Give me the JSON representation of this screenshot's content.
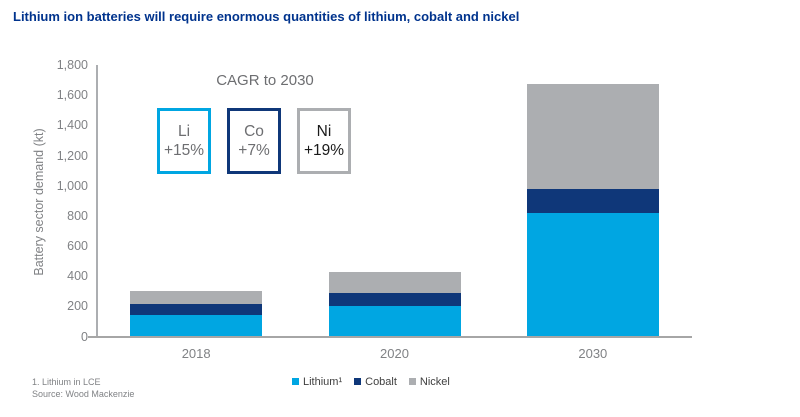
{
  "chart_data": {
    "type": "bar",
    "stacked": true,
    "title": "Lithium ion batteries will require enormous quantities of lithium, cobalt and nickel",
    "categories": [
      "2018",
      "2020",
      "2030"
    ],
    "series": [
      {
        "name": "Lithium¹",
        "color": "#00A6E2",
        "values": [
          140,
          205,
          820
        ]
      },
      {
        "name": "Cobalt",
        "color": "#0F3779",
        "values": [
          75,
          85,
          160
        ]
      },
      {
        "name": "Nickel",
        "color": "#ACAEB1",
        "values": [
          85,
          140,
          695
        ]
      }
    ],
    "xlabel": "",
    "ylabel": "Battery sector demand (kt)",
    "ylim": [
      0,
      1800
    ],
    "ytick_step": 200,
    "grid": false,
    "legend_position": "bottom"
  },
  "annotation": {
    "header": "CAGR to 2030",
    "boxes": [
      {
        "symbol": "Li",
        "value": "+15%",
        "border_color": "#00A6E2",
        "text_color": "#6D6E71"
      },
      {
        "symbol": "Co",
        "value": "+7%",
        "border_color": "#0F3779",
        "text_color": "#6D6E71"
      },
      {
        "symbol": "Ni",
        "value": "+19%",
        "border_color": "#ACAEB1",
        "text_color": "#1A1A1A"
      }
    ]
  },
  "legend": [
    {
      "label": "Lithium¹",
      "color": "#00A6E2"
    },
    {
      "label": "Cobalt",
      "color": "#0F3779"
    },
    {
      "label": "Nickel",
      "color": "#ACAEB1"
    }
  ],
  "footnotes": [
    "1. Lithium in LCE",
    "Source: Wood Mackenzie"
  ],
  "colors": {
    "title": "#00338D",
    "axis_text": "#808285",
    "axis_line": "#A6A6A6",
    "lithium": "#00A6E2",
    "cobalt": "#0F3779",
    "nickel": "#ACAEB1"
  }
}
